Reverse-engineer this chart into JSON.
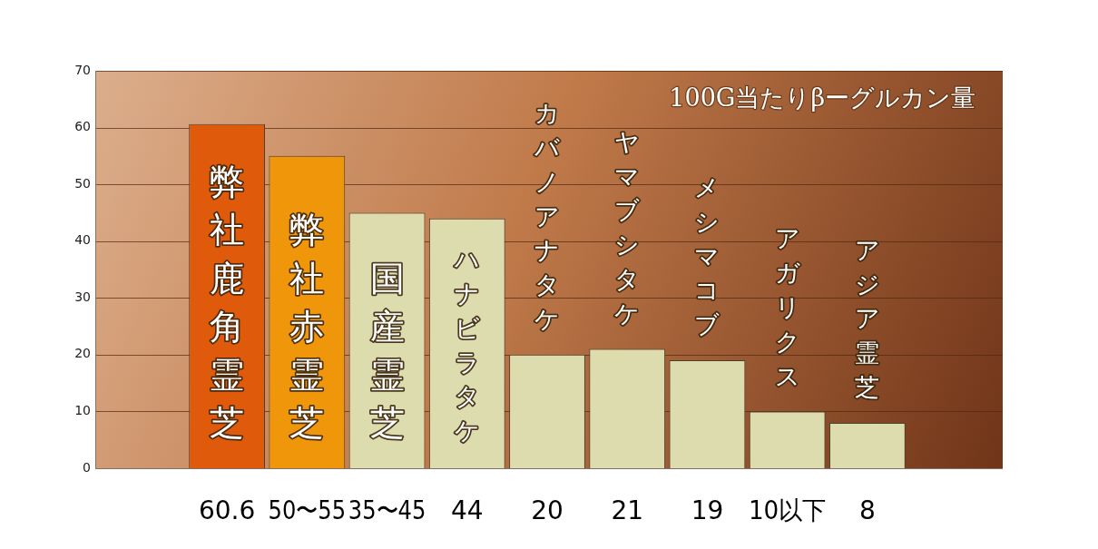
{
  "chart_data": {
    "type": "bar",
    "title": "100G当たりβーグルカン量",
    "categories": [
      "弊社鹿角霊芝",
      "弊社赤霊芝",
      "国産霊芝",
      "ハナビラタケ",
      "カバノアナタケ",
      "ヤマブシタケ",
      "メシマコブ",
      "アガリクス",
      "アジア霊芝"
    ],
    "values": [
      60.6,
      55,
      45,
      44,
      20,
      21,
      19,
      10,
      8
    ],
    "value_labels": [
      "60.6",
      "50〜55",
      "35〜45",
      "44",
      "20",
      "21",
      "19",
      "10以下",
      "8"
    ],
    "colors": [
      "#e05a0c",
      "#f0960a",
      "#dcdcae",
      "#dcdcae",
      "#dcdcae",
      "#dcdcae",
      "#dcdcae",
      "#dcdcae",
      "#dcdcae"
    ],
    "ylim": [
      0,
      70
    ],
    "yticks": [
      0,
      10,
      20,
      30,
      40,
      50,
      60,
      70
    ],
    "grid": "y"
  }
}
